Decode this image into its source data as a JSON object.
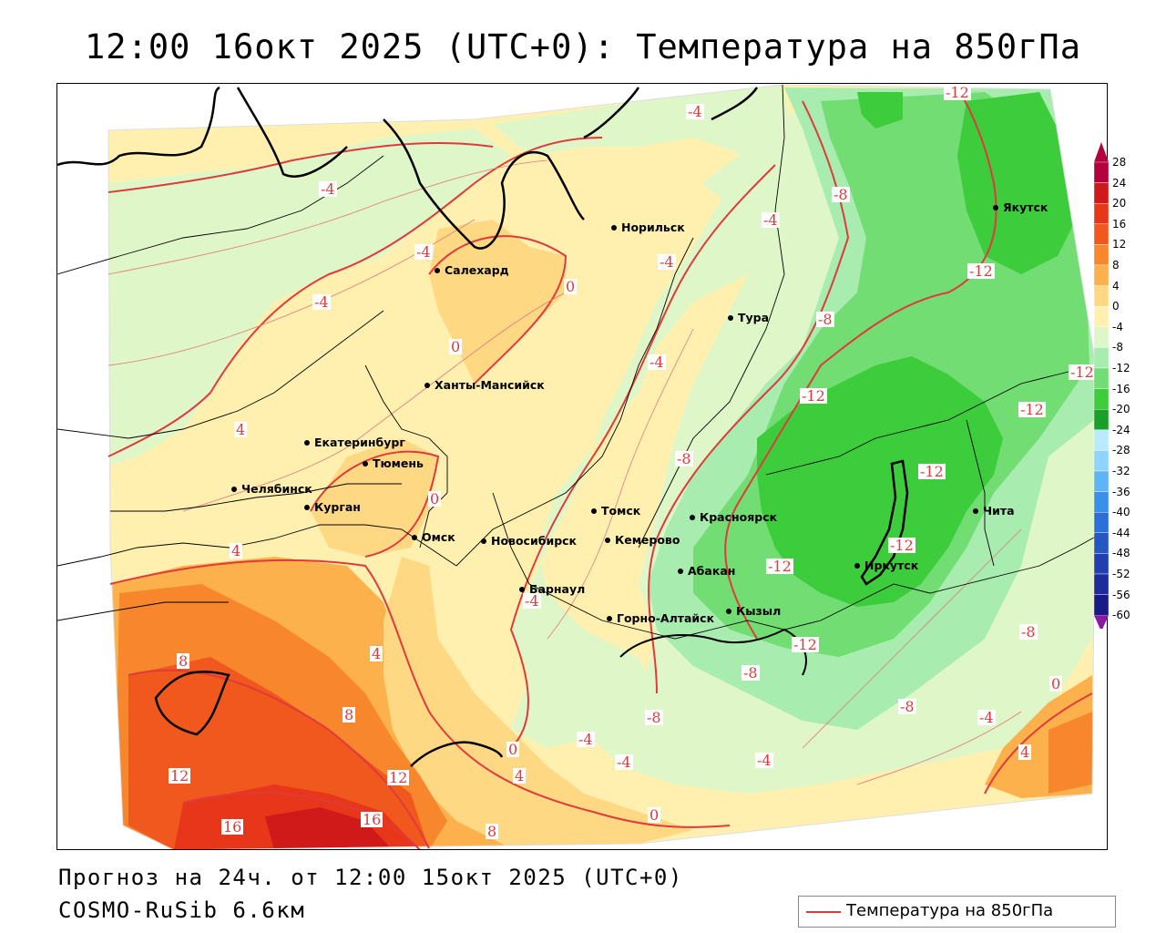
{
  "title": "12:00 16окт 2025 (UTC+0): Температура на 850гПа",
  "footer": {
    "forecast": "Прогноз на 24ч. от 12:00 15окт 2025 (UTC+0)",
    "model": "COSMO-RuSib 6.6км"
  },
  "legend": {
    "line_label": "Температура на 850гПа",
    "line_color": "#e03a3a"
  },
  "colorbar": {
    "ticks": [
      "28",
      "24",
      "20",
      "16",
      "12",
      "8",
      "4",
      "0",
      "-4",
      "-8",
      "-12",
      "-16",
      "-20",
      "-24",
      "-28",
      "-32",
      "-36",
      "-40",
      "-44",
      "-48",
      "-52",
      "-56",
      "-60"
    ],
    "colors": [
      "#b4003c",
      "#d01a1a",
      "#e8361a",
      "#f0581e",
      "#f7862c",
      "#fcb14c",
      "#ffd884",
      "#fff0b0",
      "#dff7c8",
      "#a8ecb0",
      "#72dd72",
      "#3ccc3c",
      "#1aa028",
      "#b7ecff",
      "#8fd3ff",
      "#5fb4f5",
      "#3a8fe8",
      "#2a70d8",
      "#2456c4",
      "#2040b0",
      "#1c2c9c",
      "#181a88",
      "#8a1aa0"
    ]
  },
  "cities": [
    {
      "name": "Салехард"
    },
    {
      "name": "Норильск"
    },
    {
      "name": "Якутск"
    },
    {
      "name": "Тура"
    },
    {
      "name": "Ханты-Мансийск"
    },
    {
      "name": "Екатеринбург"
    },
    {
      "name": "Тюмень"
    },
    {
      "name": "Челябинск"
    },
    {
      "name": "Курган"
    },
    {
      "name": "Омск"
    },
    {
      "name": "Новосибирск"
    },
    {
      "name": "Томск"
    },
    {
      "name": "Кемерово"
    },
    {
      "name": "Красноярск"
    },
    {
      "name": "Абакан"
    },
    {
      "name": "Барнаул"
    },
    {
      "name": "Горно-Алтайск"
    },
    {
      "name": "Кызыл"
    },
    {
      "name": "Иркутск"
    },
    {
      "name": "Чита"
    }
  ],
  "isotherm_labels": [
    "-12",
    "-4",
    "-4",
    "-8",
    "-4",
    "-4",
    "-12",
    "-4",
    "-4",
    "0",
    "-8",
    "-12",
    "-4",
    "0",
    "-12",
    "-12",
    "4",
    "-8",
    "-12",
    "0",
    "-12",
    "4",
    "-4",
    "-12",
    "-8",
    "-12",
    "8",
    "4",
    "-8",
    "0",
    "8",
    "-8",
    "-4",
    "-4",
    "-4",
    "-4",
    "0",
    "12",
    "12",
    "4",
    "16",
    "16",
    "8",
    "0",
    "4",
    "-8"
  ]
}
